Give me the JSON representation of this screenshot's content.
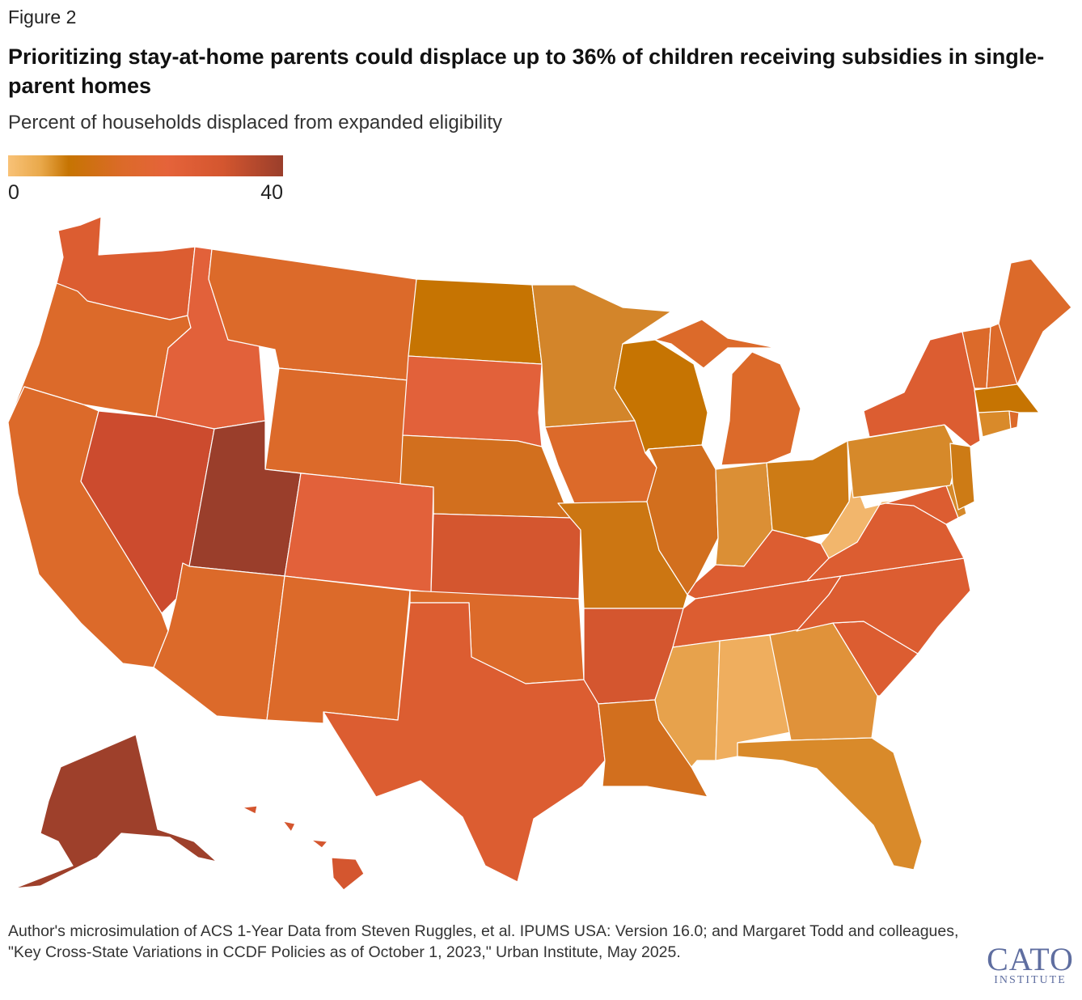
{
  "figure_label": "Figure 2",
  "title": "Prioritizing stay-at-home parents could displace up to 36% of children receiving subsidies in single-parent homes",
  "subtitle": "Percent of households displaced from expanded eligibility",
  "legend": {
    "min_label": "0",
    "max_label": "40",
    "color_scale": [
      "#f8c277",
      "#e9a84a",
      "#c67402",
      "#dc6a2a",
      "#e5633a",
      "#d4562f",
      "#9a3e2b"
    ]
  },
  "map": {
    "states": [
      {
        "code": "WA",
        "name": "Washington",
        "color": "#dc5d31"
      },
      {
        "code": "OR",
        "name": "Oregon",
        "color": "#dc6a2a"
      },
      {
        "code": "CA",
        "name": "California",
        "color": "#dc6a2a"
      },
      {
        "code": "NV",
        "name": "Nevada",
        "color": "#cc4b2e"
      },
      {
        "code": "ID",
        "name": "Idaho",
        "color": "#e2613a"
      },
      {
        "code": "MT",
        "name": "Montana",
        "color": "#dc6a2a"
      },
      {
        "code": "WY",
        "name": "Wyoming",
        "color": "#dc6a2a"
      },
      {
        "code": "UT",
        "name": "Utah",
        "color": "#9a3e2b"
      },
      {
        "code": "AZ",
        "name": "Arizona",
        "color": "#dc6a2a"
      },
      {
        "code": "CO",
        "name": "Colorado",
        "color": "#e2613a"
      },
      {
        "code": "NM",
        "name": "New Mexico",
        "color": "#dc6a2a"
      },
      {
        "code": "ND",
        "name": "North Dakota",
        "color": "#c67402"
      },
      {
        "code": "SD",
        "name": "South Dakota",
        "color": "#e2613a"
      },
      {
        "code": "NE",
        "name": "Nebraska",
        "color": "#d26f1e"
      },
      {
        "code": "KS",
        "name": "Kansas",
        "color": "#d4562f"
      },
      {
        "code": "OK",
        "name": "Oklahoma",
        "color": "#dc6a2a"
      },
      {
        "code": "TX",
        "name": "Texas",
        "color": "#dc5d31"
      },
      {
        "code": "MN",
        "name": "Minnesota",
        "color": "#d3852a"
      },
      {
        "code": "IA",
        "name": "Iowa",
        "color": "#dc6a2a"
      },
      {
        "code": "MO",
        "name": "Missouri",
        "color": "#cc7612"
      },
      {
        "code": "AR",
        "name": "Arkansas",
        "color": "#d4562f"
      },
      {
        "code": "LA",
        "name": "Louisiana",
        "color": "#d26f1e"
      },
      {
        "code": "WI",
        "name": "Wisconsin",
        "color": "#c67402"
      },
      {
        "code": "IL",
        "name": "Illinois",
        "color": "#d26f1e"
      },
      {
        "code": "MI",
        "name": "Michigan",
        "color": "#dc6a2a"
      },
      {
        "code": "IN",
        "name": "Indiana",
        "color": "#db8f35"
      },
      {
        "code": "OH",
        "name": "Ohio",
        "color": "#cd7b15"
      },
      {
        "code": "KY",
        "name": "Kentucky",
        "color": "#dc5d31"
      },
      {
        "code": "TN",
        "name": "Tennessee",
        "color": "#dc5d31"
      },
      {
        "code": "MS",
        "name": "Mississippi",
        "color": "#e7a24c"
      },
      {
        "code": "AL",
        "name": "Alabama",
        "color": "#efae5e"
      },
      {
        "code": "GA",
        "name": "Georgia",
        "color": "#e0923a"
      },
      {
        "code": "FL",
        "name": "Florida",
        "color": "#d98a2a"
      },
      {
        "code": "SC",
        "name": "South Carolina",
        "color": "#dc5d31"
      },
      {
        "code": "NC",
        "name": "North Carolina",
        "color": "#dc5d31"
      },
      {
        "code": "VA",
        "name": "Virginia",
        "color": "#dc5d31"
      },
      {
        "code": "WV",
        "name": "West Virginia",
        "color": "#f2b66c"
      },
      {
        "code": "PA",
        "name": "Pennsylvania",
        "color": "#d6892a"
      },
      {
        "code": "NY",
        "name": "New York",
        "color": "#dc5d31"
      },
      {
        "code": "VT",
        "name": "Vermont",
        "color": "#dc6a2a"
      },
      {
        "code": "NH",
        "name": "New Hampshire",
        "color": "#dc6a2a"
      },
      {
        "code": "ME",
        "name": "Maine",
        "color": "#dc6a2a"
      },
      {
        "code": "MA",
        "name": "Massachusetts",
        "color": "#c67402"
      },
      {
        "code": "CT",
        "name": "Connecticut",
        "color": "#d98a2a"
      },
      {
        "code": "RI",
        "name": "Rhode Island",
        "color": "#dc6a2a"
      },
      {
        "code": "NJ",
        "name": "New Jersey",
        "color": "#cd7b15"
      },
      {
        "code": "DE",
        "name": "Delaware",
        "color": "#d6892a"
      },
      {
        "code": "MD",
        "name": "Maryland",
        "color": "#dc5d31"
      },
      {
        "code": "AK",
        "name": "Alaska",
        "color": "#9e402b"
      },
      {
        "code": "HI",
        "name": "Hawaii",
        "color": "#d4562f"
      }
    ]
  },
  "source": "Author's microsimulation of ACS 1-Year Data from Steven Ruggles, et al. IPUMS USA: Version 16.0; and Margaret Todd and colleagues, \"Key Cross-State Variations in CCDF Policies as of October 1, 2023,\" Urban Institute, May 2025.",
  "logo": {
    "main": "CATO",
    "sub": "INSTITUTE"
  }
}
